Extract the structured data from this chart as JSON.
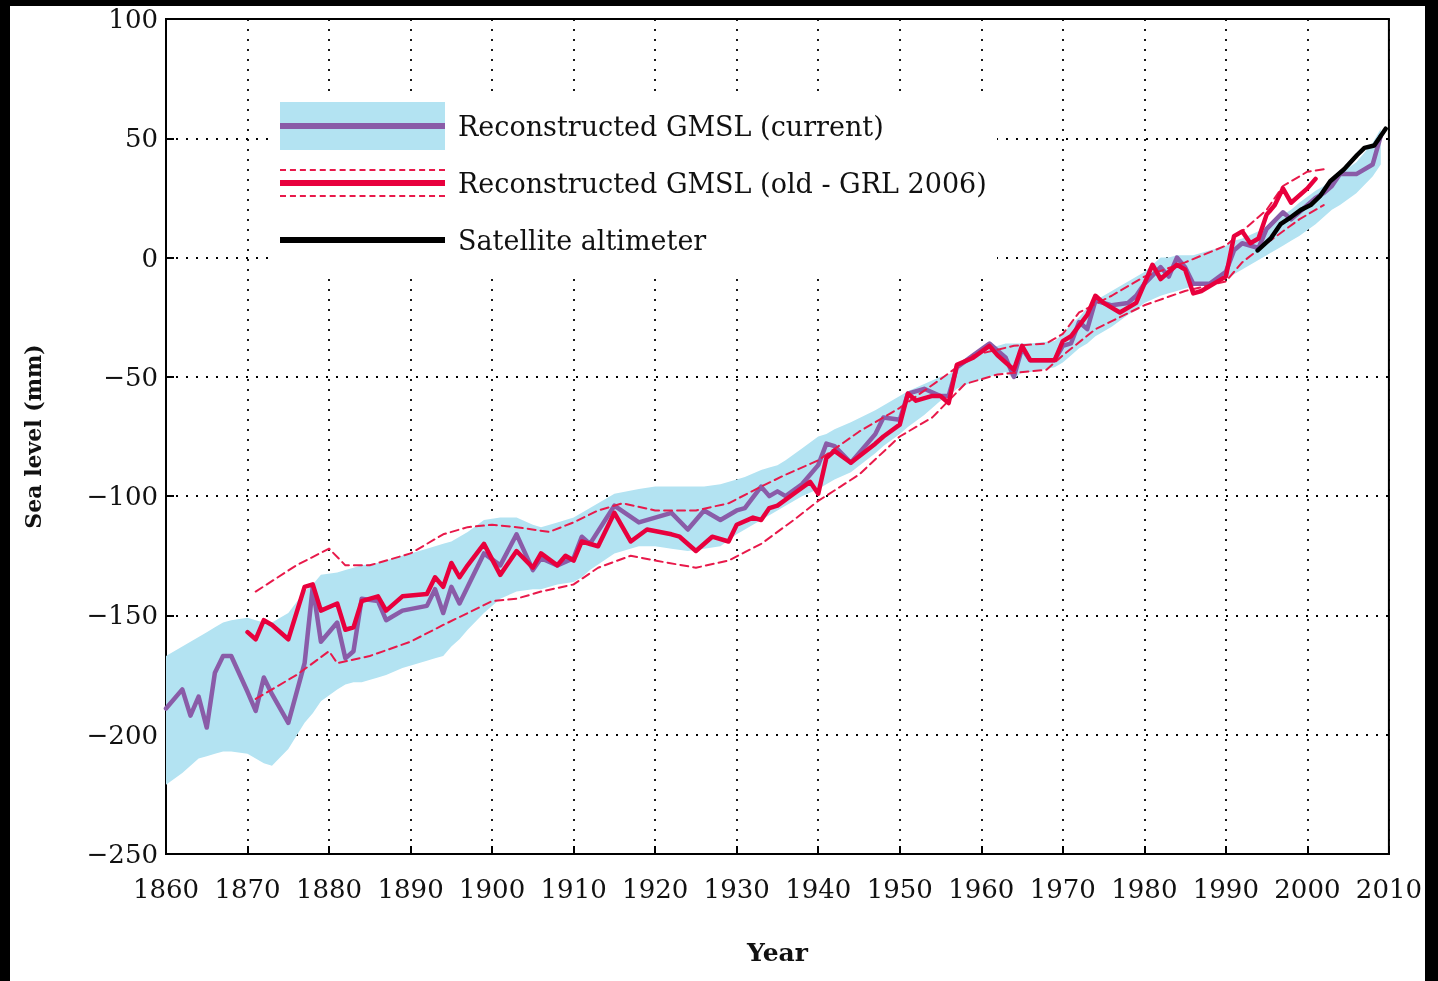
{
  "chart_data": {
    "type": "line",
    "xlabel": "Year",
    "ylabel": "Sea level (mm)",
    "xlim": [
      1860,
      2010
    ],
    "xticks": [
      1860,
      1870,
      1880,
      1890,
      1900,
      1910,
      1920,
      1930,
      1940,
      1950,
      1960,
      1970,
      1980,
      1990,
      2000,
      2010
    ],
    "ylim": [
      -250,
      100
    ],
    "yticks": [
      100,
      50,
      0,
      {
        "value": -50,
        "label": "−50"
      },
      {
        "value": -100,
        "label": "−100"
      },
      {
        "value": -150,
        "label": "−150"
      },
      {
        "value": -200,
        "label": "−200"
      },
      {
        "value": -250,
        "label": "−250"
      }
    ],
    "grid": true,
    "legend": "top left",
    "marker": "none",
    "line_style": "solid",
    "series": [
      {
        "type": "area",
        "color": "#b3e3f2",
        "x": [
          1860,
          1862,
          1863,
          1864,
          1865,
          1866,
          1867,
          1868,
          1870,
          1871,
          1872,
          1873,
          1875,
          1877,
          1878,
          1879,
          1881,
          1882,
          1883,
          1884,
          1886,
          1887,
          1889,
          1892,
          1893,
          1894,
          1895,
          1896,
          1897,
          1899,
          1901,
          1903,
          1905,
          1906,
          1908,
          1910,
          1911,
          1912,
          1915,
          1918,
          1920,
          1922,
          1924,
          1926,
          1928,
          1930,
          1931,
          1933,
          1934,
          1935,
          1936,
          1938,
          1940,
          1941,
          1942,
          1944,
          1947,
          1948,
          1950,
          1951,
          1953,
          1955,
          1956,
          1957,
          1959,
          1961,
          1963,
          1964,
          1965,
          1966,
          1969,
          1970,
          1971,
          1972,
          1973,
          1974,
          1976,
          1978,
          1979,
          1980,
          1982,
          1983,
          1984,
          1985,
          1986,
          1988,
          1990,
          1991,
          1992,
          1994,
          1995,
          1997,
          1998,
          1999,
          2001,
          2002,
          2003,
          2004,
          2006,
          2008,
          2009
        ],
        "values": [
          null,
          null,
          null,
          null,
          null,
          null,
          null,
          null,
          null,
          null,
          null,
          null,
          null,
          null,
          null,
          null,
          null,
          null,
          null,
          null,
          null,
          null,
          null,
          null,
          null,
          null,
          null,
          null,
          null,
          null,
          null,
          null,
          null,
          null,
          null,
          null,
          null,
          null,
          null,
          null,
          null,
          null,
          null,
          null,
          null,
          null,
          null,
          null,
          null,
          null,
          null,
          null,
          null,
          null,
          null,
          null,
          null,
          null,
          null,
          null,
          null,
          null,
          null,
          null,
          null,
          null,
          null,
          null,
          null,
          null,
          null,
          null,
          null,
          null,
          null,
          null,
          null,
          null,
          null,
          null,
          null,
          null,
          null,
          null,
          null,
          null,
          null,
          null,
          null,
          null,
          null,
          null,
          null,
          null,
          null,
          null,
          null,
          null,
          null,
          null,
          null
        ],
        "upper": [
          -167,
          -163,
          -161,
          -159,
          -157,
          -155,
          -153,
          -152,
          -151,
          -152,
          -153,
          -153,
          -149,
          -140,
          -137,
          -133,
          -132,
          -131,
          -130,
          -129,
          -128,
          -127,
          -125,
          -122,
          -121,
          -120,
          -119,
          -117,
          -115,
          -110,
          -109,
          -109,
          -112,
          -113,
          -111,
          -109,
          -107,
          -105,
          -99,
          -97,
          -96,
          -96,
          -96,
          -96,
          -95,
          -93,
          -92,
          -89,
          -88,
          -87,
          -85,
          -80,
          -75,
          -74,
          -72,
          -69,
          -64,
          -62,
          -58,
          -56,
          -53,
          -50,
          -49,
          -47,
          -41,
          -38,
          -36,
          -36,
          -36,
          -36,
          -35,
          -32,
          -28,
          -25,
          -21,
          -18,
          -14,
          -10,
          -8,
          -6,
          0,
          0,
          1,
          1,
          1,
          3,
          5,
          7,
          8,
          11,
          13,
          18,
          20,
          23,
          28,
          30,
          33,
          35,
          40,
          48,
          54
        ],
        "lower": [
          -221,
          -216,
          -213,
          -210,
          -209,
          -208,
          -207,
          -207,
          -208,
          -210,
          -212,
          -213,
          -206,
          -195,
          -191,
          -186,
          -181,
          -179,
          -178,
          -178,
          -176,
          -175,
          -172,
          -169,
          -168,
          -167,
          -163,
          -160,
          -156,
          -149,
          -143,
          -140,
          -139,
          -139,
          -137,
          -136,
          -134,
          -131,
          -124,
          -121,
          -121,
          -122,
          -123,
          -122,
          -121,
          -116,
          -114,
          -110,
          -108,
          -106,
          -104,
          -100,
          -97,
          -95,
          -93,
          -90,
          -82,
          -79,
          -74,
          -71,
          -66,
          -60,
          -58,
          -55,
          -52,
          -50,
          -48,
          -51,
          -48,
          -48,
          -46,
          -44,
          -41,
          -38,
          -36,
          -33,
          -29,
          -24,
          -22,
          -19,
          -16,
          -15,
          -14,
          -13,
          -12,
          -11,
          -9,
          -7,
          -5,
          -1,
          1,
          5,
          7,
          9,
          14,
          17,
          20,
          22,
          27,
          34,
          39
        ]
      },
      {
        "name": "Reconstructed GMSL (current)",
        "color": "#8a5ca8",
        "x": [
          1860,
          1862,
          1863,
          1864,
          1865,
          1866,
          1867,
          1868,
          1870,
          1871,
          1872,
          1873,
          1875,
          1877,
          1878,
          1879,
          1881,
          1882,
          1883,
          1884,
          1886,
          1887,
          1889,
          1892,
          1893,
          1894,
          1895,
          1896,
          1897,
          1899,
          1901,
          1903,
          1905,
          1906,
          1908,
          1910,
          1911,
          1912,
          1915,
          1918,
          1920,
          1922,
          1924,
          1926,
          1928,
          1930,
          1931,
          1933,
          1934,
          1935,
          1936,
          1938,
          1940,
          1941,
          1942,
          1944,
          1947,
          1948,
          1950,
          1951,
          1953,
          1955,
          1956,
          1957,
          1959,
          1961,
          1963,
          1964,
          1965,
          1966,
          1969,
          1970,
          1971,
          1972,
          1973,
          1974,
          1976,
          1978,
          1979,
          1980,
          1982,
          1983,
          1984,
          1985,
          1986,
          1988,
          1990,
          1991,
          1992,
          1994,
          1995,
          1997,
          1998,
          1999,
          2001,
          2002,
          2003,
          2004,
          2006,
          2008,
          2009
        ],
        "values": [
          -189,
          -181,
          -192,
          -184,
          -197,
          -174,
          -167,
          -167,
          -182,
          -190,
          -176,
          -183,
          -195,
          -170,
          -138,
          -161,
          -153,
          -168,
          -165,
          -143,
          -144,
          -152,
          -148,
          -146,
          -139,
          -149,
          -138,
          -145,
          -138,
          -124,
          -129,
          -116,
          -131,
          -126,
          -129,
          -126,
          -117,
          -120,
          -104,
          -111,
          -109,
          -107,
          -114,
          -106,
          -110,
          -106,
          -105,
          -96,
          -100,
          -98,
          -100,
          -95,
          -87,
          -78,
          -79,
          -86,
          -74,
          -67,
          -68,
          -57,
          -55,
          -58,
          -58,
          -46,
          -41,
          -36,
          -42,
          -50,
          -38,
          -43,
          -43,
          -37,
          -36,
          -27,
          -30,
          -18,
          -20,
          -19,
          -16,
          -11,
          -4,
          -8,
          0,
          -4,
          -11,
          -11,
          -6,
          3,
          6,
          4,
          12,
          19,
          16,
          19,
          25,
          27,
          30,
          35,
          35,
          39,
          51
        ]
      },
      {
        "color": "#e8194a",
        "line_style": "dashed",
        "x": [
          1871,
          1876,
          1880,
          1882,
          1885,
          1890,
          1894,
          1897,
          1900,
          1903,
          1907,
          1910,
          1913,
          1916,
          1920,
          1925,
          1929,
          1933,
          1936,
          1940,
          1945,
          1950,
          1955,
          1959,
          1964,
          1968,
          1970,
          1972,
          1976,
          1980,
          1985,
          1990,
          1995,
          1997,
          2000,
          2002
        ],
        "values": [
          -140,
          -129,
          -122,
          -129,
          -129,
          -124,
          -116,
          -113,
          -112,
          -113,
          -115,
          -111,
          -106,
          -103,
          -106,
          -106,
          -103,
          -96,
          -91,
          -85,
          -73,
          -63,
          -51,
          -41,
          -37,
          -36,
          -32,
          -23,
          -16,
          -8,
          -2,
          5,
          20,
          30,
          36,
          37
        ]
      },
      {
        "color": "#e8194a",
        "line_style": "dashed",
        "x": [
          1871,
          1876,
          1880,
          1881,
          1885,
          1890,
          1894,
          1900,
          1903,
          1906,
          1910,
          1913,
          1917,
          1920,
          1925,
          1929,
          1933,
          1937,
          1940,
          1945,
          1950,
          1954,
          1958,
          1962,
          1968,
          1970,
          1974,
          1977,
          1980,
          1985,
          1990,
          1992,
          1995,
          1999,
          2002
        ],
        "values": [
          -185,
          -175,
          -165,
          -170,
          -167,
          -161,
          -154,
          -144,
          -143,
          -140,
          -137,
          -130,
          -125,
          -127,
          -130,
          -127,
          -120,
          -110,
          -102,
          -91,
          -75,
          -67,
          -53,
          -49,
          -47,
          -41,
          -30,
          -25,
          -20,
          -14,
          -10,
          -2,
          6,
          16,
          22
        ]
      },
      {
        "name": "Reconstructed GMSL (old - GRL 2006)",
        "color": "#e8003d",
        "x": [
          1870,
          1871,
          1872,
          1873,
          1875,
          1877,
          1878,
          1879,
          1881,
          1882,
          1883,
          1884,
          1886,
          1887,
          1889,
          1892,
          1893,
          1894,
          1895,
          1896,
          1897,
          1899,
          1901,
          1903,
          1905,
          1906,
          1908,
          1909,
          1910,
          1911,
          1913,
          1915,
          1917,
          1919,
          1922,
          1923,
          1925,
          1927,
          1929,
          1930,
          1932,
          1933,
          1934,
          1935,
          1937,
          1939,
          1940,
          1941,
          1942,
          1944,
          1947,
          1948,
          1950,
          1951,
          1952,
          1954,
          1955,
          1956,
          1957,
          1959,
          1961,
          1962,
          1964,
          1965,
          1966,
          1969,
          1970,
          1971,
          1973,
          1974,
          1975,
          1977,
          1979,
          1980,
          1981,
          1982,
          1984,
          1985,
          1986,
          1987,
          1989,
          1990,
          1991,
          1992,
          1993,
          1994,
          1995,
          1996,
          1997,
          1998,
          2000,
          2001
        ],
        "values": [
          -157,
          -160,
          -152,
          -154,
          -160,
          -138,
          -137,
          -148,
          -145,
          -156,
          -155,
          -144,
          -142,
          -148,
          -142,
          -141,
          -134,
          -138,
          -128,
          -134,
          -129,
          -120,
          -133,
          -123,
          -130,
          -124,
          -129,
          -125,
          -127,
          -119,
          -121,
          -107,
          -119,
          -114,
          -116,
          -117,
          -123,
          -117,
          -119,
          -112,
          -109,
          -110,
          -105,
          -104,
          -99,
          -94,
          -99,
          -84,
          -81,
          -86,
          -78,
          -75,
          -70,
          -57,
          -60,
          -58,
          -58,
          -61,
          -45,
          -42,
          -37,
          -41,
          -47,
          -37,
          -43,
          -43,
          -35,
          -33,
          -24,
          -16,
          -19,
          -23,
          -19,
          -11,
          -3,
          -9,
          -3,
          -5,
          -15,
          -14,
          -10,
          -8,
          9,
          11,
          6,
          8,
          18,
          22,
          29,
          23,
          29,
          33
        ]
      },
      {
        "name": "Satellite altimeter",
        "color": "#000000",
        "x": [
          1993.9,
          1995.5,
          1996.7,
          1998,
          1999.2,
          2000.4,
          2001.6,
          2002.8,
          2004.5,
          2006.1,
          2007,
          2008.2,
          2009.6
        ],
        "values": [
          3,
          8,
          14,
          17,
          20,
          22,
          26,
          32,
          37,
          43,
          46,
          47,
          54
        ]
      }
    ]
  }
}
